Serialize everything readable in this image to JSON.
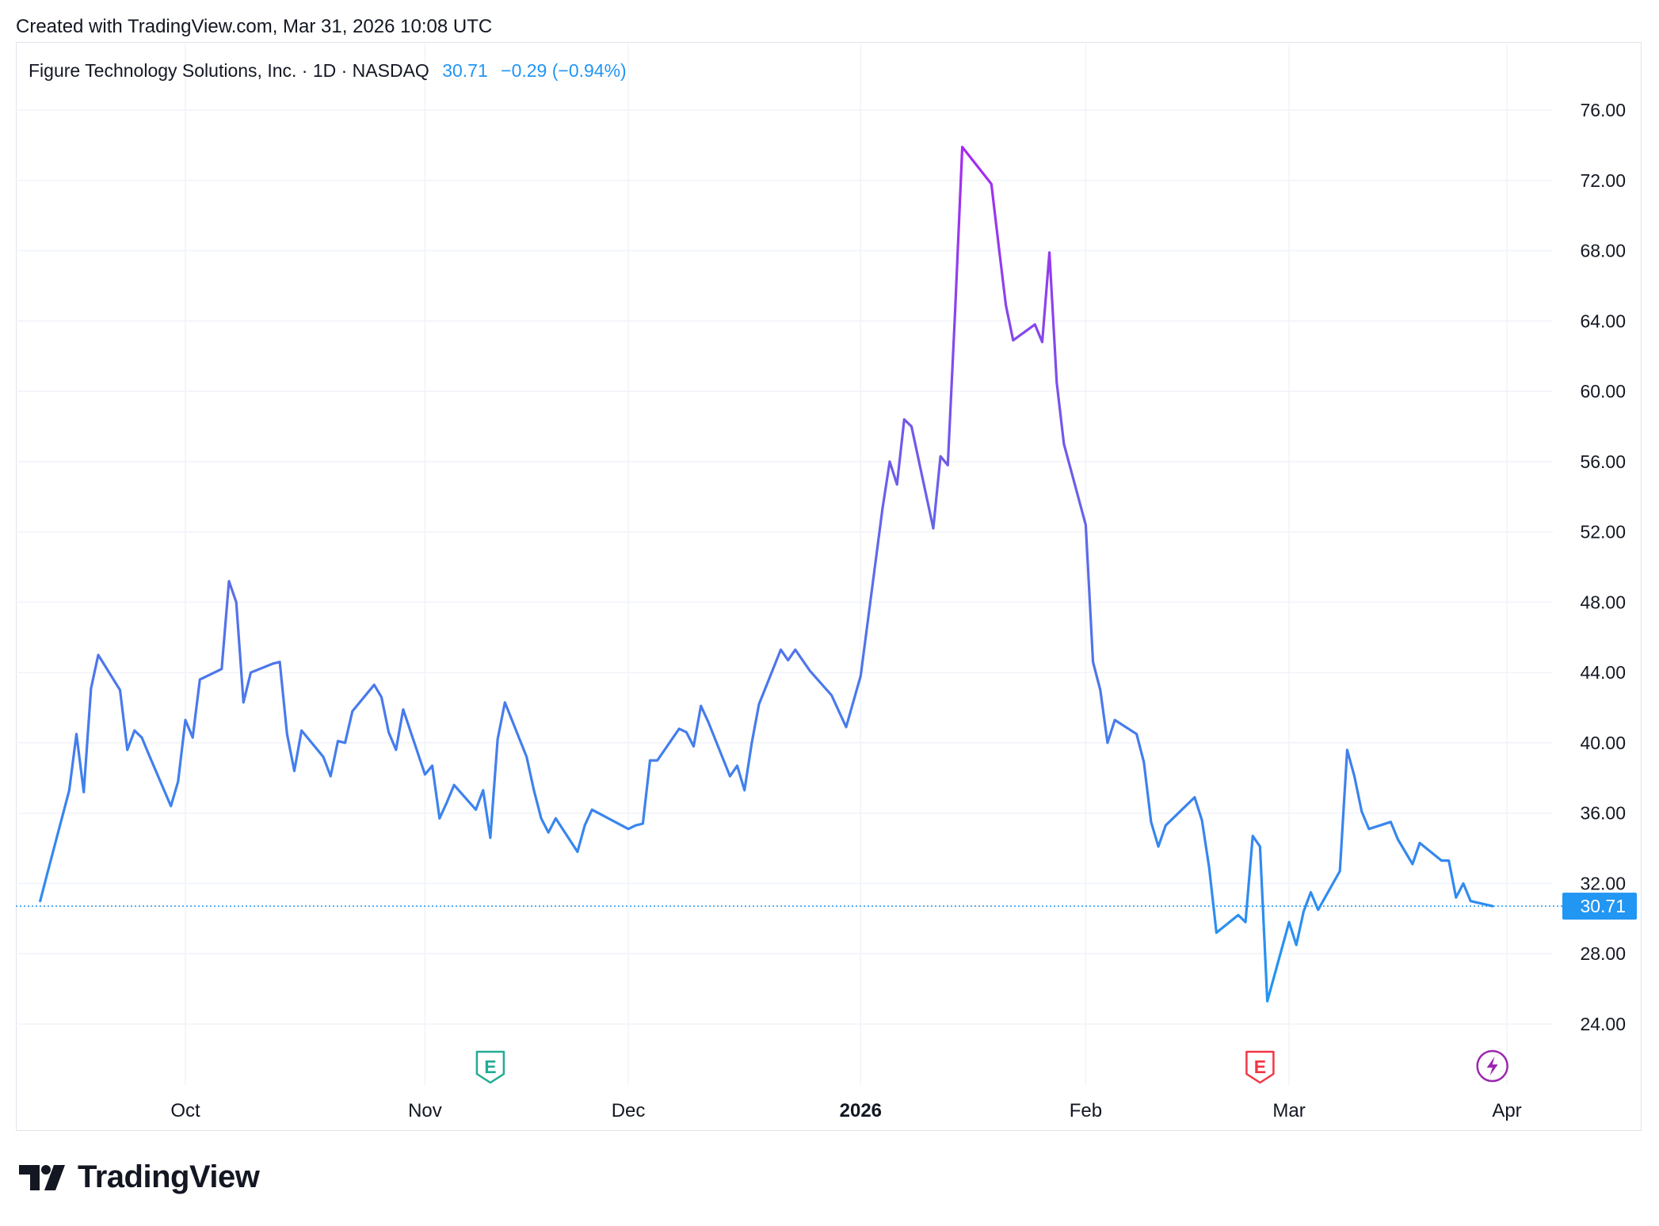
{
  "header": {
    "created_text": "Created with TradingView.com, Mar 31, 2026 10:08 UTC"
  },
  "legend": {
    "name": "Figure Technology Solutions, Inc. · 1D · NASDAQ",
    "price": "30.71",
    "change": "−0.29 (−0.94%)",
    "color": "#2196f3"
  },
  "brand": {
    "name": "TradingView"
  },
  "colors": {
    "line_start": "#2196f3",
    "line_mid": "#5b6de8",
    "line_peak": "#a72af0",
    "grid": "#f0f3fa",
    "earnings_green": "#22ab94",
    "earnings_red": "#f23645",
    "dividend_purple": "#9c27b0",
    "last_price_bg": "#2196f3"
  },
  "chart_data": {
    "type": "line",
    "title": "Figure Technology Solutions, Inc. · 1D · NASDAQ",
    "xlabel": "",
    "ylabel": "",
    "ylim": [
      20,
      78
    ],
    "grid": true,
    "y_ticks": [
      "24.00",
      "28.00",
      "32.00",
      "36.00",
      "40.00",
      "44.00",
      "48.00",
      "52.00",
      "56.00",
      "60.00",
      "64.00",
      "68.00",
      "72.00",
      "76.00"
    ],
    "x_ticks": [
      {
        "label": "Oct",
        "date": "2025-10-01"
      },
      {
        "label": "Nov",
        "date": "2025-11-03"
      },
      {
        "label": "Dec",
        "date": "2025-12-01"
      },
      {
        "label": "2026",
        "date": "2026-01-02",
        "bold": true
      },
      {
        "label": "Feb",
        "date": "2026-02-02"
      },
      {
        "label": "Mar",
        "date": "2026-03-02"
      },
      {
        "label": "Apr",
        "date": "2026-04-01"
      }
    ],
    "last_price": "30.71",
    "markers": [
      {
        "type": "earnings",
        "label": "E",
        "date": "2025-11-12",
        "color": "#22ab94"
      },
      {
        "type": "earnings",
        "label": "E",
        "date": "2026-02-26",
        "color": "#f23645"
      },
      {
        "type": "event",
        "label": "⚡",
        "date": "2026-03-30",
        "color": "#9c27b0"
      }
    ],
    "series": [
      {
        "points": [
          [
            "2025-09-11",
            31.0
          ],
          [
            "2025-09-12",
            32.6
          ],
          [
            "2025-09-15",
            37.3
          ],
          [
            "2025-09-16",
            40.5
          ],
          [
            "2025-09-17",
            37.2
          ],
          [
            "2025-09-18",
            43.1
          ],
          [
            "2025-09-19",
            45.0
          ],
          [
            "2025-09-22",
            43.0
          ],
          [
            "2025-09-23",
            39.6
          ],
          [
            "2025-09-24",
            40.7
          ],
          [
            "2025-09-25",
            40.3
          ],
          [
            "2025-09-26",
            39.3
          ],
          [
            "2025-09-29",
            36.4
          ],
          [
            "2025-09-30",
            37.8
          ],
          [
            "2025-10-01",
            41.3
          ],
          [
            "2025-10-02",
            40.3
          ],
          [
            "2025-10-03",
            43.6
          ],
          [
            "2025-10-06",
            44.2
          ],
          [
            "2025-10-07",
            49.2
          ],
          [
            "2025-10-08",
            48.0
          ],
          [
            "2025-10-09",
            42.3
          ],
          [
            "2025-10-10",
            44.0
          ],
          [
            "2025-10-13",
            44.5
          ],
          [
            "2025-10-14",
            44.6
          ],
          [
            "2025-10-15",
            40.5
          ],
          [
            "2025-10-16",
            38.4
          ],
          [
            "2025-10-17",
            40.7
          ],
          [
            "2025-10-20",
            39.2
          ],
          [
            "2025-10-21",
            38.1
          ],
          [
            "2025-10-22",
            40.1
          ],
          [
            "2025-10-23",
            40.0
          ],
          [
            "2025-10-24",
            41.8
          ],
          [
            "2025-10-27",
            43.3
          ],
          [
            "2025-10-28",
            42.6
          ],
          [
            "2025-10-29",
            40.6
          ],
          [
            "2025-10-30",
            39.6
          ],
          [
            "2025-10-31",
            41.9
          ],
          [
            "2025-11-03",
            38.2
          ],
          [
            "2025-11-04",
            38.7
          ],
          [
            "2025-11-05",
            35.7
          ],
          [
            "2025-11-06",
            36.6
          ],
          [
            "2025-11-07",
            37.6
          ],
          [
            "2025-11-10",
            36.2
          ],
          [
            "2025-11-11",
            37.3
          ],
          [
            "2025-11-12",
            34.6
          ],
          [
            "2025-11-13",
            40.2
          ],
          [
            "2025-11-14",
            42.3
          ],
          [
            "2025-11-17",
            39.2
          ],
          [
            "2025-11-18",
            37.3
          ],
          [
            "2025-11-19",
            35.7
          ],
          [
            "2025-11-20",
            34.9
          ],
          [
            "2025-11-21",
            35.7
          ],
          [
            "2025-11-24",
            33.8
          ],
          [
            "2025-11-25",
            35.3
          ],
          [
            "2025-11-26",
            36.2
          ],
          [
            "2025-12-01",
            35.1
          ],
          [
            "2025-12-02",
            35.3
          ],
          [
            "2025-12-03",
            35.4
          ],
          [
            "2025-12-04",
            39.0
          ],
          [
            "2025-12-05",
            39.0
          ],
          [
            "2025-12-08",
            40.8
          ],
          [
            "2025-12-09",
            40.6
          ],
          [
            "2025-12-10",
            39.8
          ],
          [
            "2025-12-11",
            42.1
          ],
          [
            "2025-12-12",
            41.2
          ],
          [
            "2025-12-15",
            38.1
          ],
          [
            "2025-12-16",
            38.7
          ],
          [
            "2025-12-17",
            37.3
          ],
          [
            "2025-12-18",
            40.0
          ],
          [
            "2025-12-19",
            42.2
          ],
          [
            "2025-12-22",
            45.3
          ],
          [
            "2025-12-23",
            44.7
          ],
          [
            "2025-12-24",
            45.3
          ],
          [
            "2025-12-26",
            44.1
          ],
          [
            "2025-12-29",
            42.7
          ],
          [
            "2025-12-30",
            41.8
          ],
          [
            "2025-12-31",
            40.9
          ],
          [
            "2026-01-02",
            43.8
          ],
          [
            "2026-01-05",
            53.3
          ],
          [
            "2026-01-06",
            56.0
          ],
          [
            "2026-01-07",
            54.7
          ],
          [
            "2026-01-08",
            58.4
          ],
          [
            "2026-01-09",
            58.0
          ],
          [
            "2026-01-12",
            52.2
          ],
          [
            "2026-01-13",
            56.3
          ],
          [
            "2026-01-14",
            55.8
          ],
          [
            "2026-01-15",
            64.5
          ],
          [
            "2026-01-16",
            73.9
          ],
          [
            "2026-01-20",
            71.8
          ],
          [
            "2026-01-21",
            68.3
          ],
          [
            "2026-01-22",
            64.9
          ],
          [
            "2026-01-23",
            62.9
          ],
          [
            "2026-01-26",
            63.8
          ],
          [
            "2026-01-27",
            62.8
          ],
          [
            "2026-01-28",
            67.9
          ],
          [
            "2026-01-29",
            60.5
          ],
          [
            "2026-01-30",
            57.0
          ],
          [
            "2026-02-02",
            52.4
          ],
          [
            "2026-02-03",
            44.6
          ],
          [
            "2026-02-04",
            43.0
          ],
          [
            "2026-02-05",
            40.0
          ],
          [
            "2026-02-06",
            41.3
          ],
          [
            "2026-02-09",
            40.5
          ],
          [
            "2026-02-10",
            38.9
          ],
          [
            "2026-02-11",
            35.5
          ],
          [
            "2026-02-12",
            34.1
          ],
          [
            "2026-02-13",
            35.3
          ],
          [
            "2026-02-17",
            36.9
          ],
          [
            "2026-02-18",
            35.6
          ],
          [
            "2026-02-19",
            32.9
          ],
          [
            "2026-02-20",
            29.2
          ],
          [
            "2026-02-23",
            30.2
          ],
          [
            "2026-02-24",
            29.8
          ],
          [
            "2026-02-25",
            34.7
          ],
          [
            "2026-02-26",
            34.1
          ],
          [
            "2026-02-27",
            25.3
          ],
          [
            "2026-03-02",
            29.8
          ],
          [
            "2026-03-03",
            28.5
          ],
          [
            "2026-03-04",
            30.4
          ],
          [
            "2026-03-05",
            31.5
          ],
          [
            "2026-03-06",
            30.5
          ],
          [
            "2026-03-09",
            32.7
          ],
          [
            "2026-03-10",
            39.6
          ],
          [
            "2026-03-11",
            38.1
          ],
          [
            "2026-03-12",
            36.1
          ],
          [
            "2026-03-13",
            35.1
          ],
          [
            "2026-03-16",
            35.5
          ],
          [
            "2026-03-17",
            34.5
          ],
          [
            "2026-03-18",
            33.8
          ],
          [
            "2026-03-19",
            33.1
          ],
          [
            "2026-03-20",
            34.3
          ],
          [
            "2026-03-23",
            33.3
          ],
          [
            "2026-03-24",
            33.3
          ],
          [
            "2026-03-25",
            31.2
          ],
          [
            "2026-03-26",
            32.0
          ],
          [
            "2026-03-27",
            31.0
          ],
          [
            "2026-03-30",
            30.71
          ]
        ]
      }
    ]
  }
}
